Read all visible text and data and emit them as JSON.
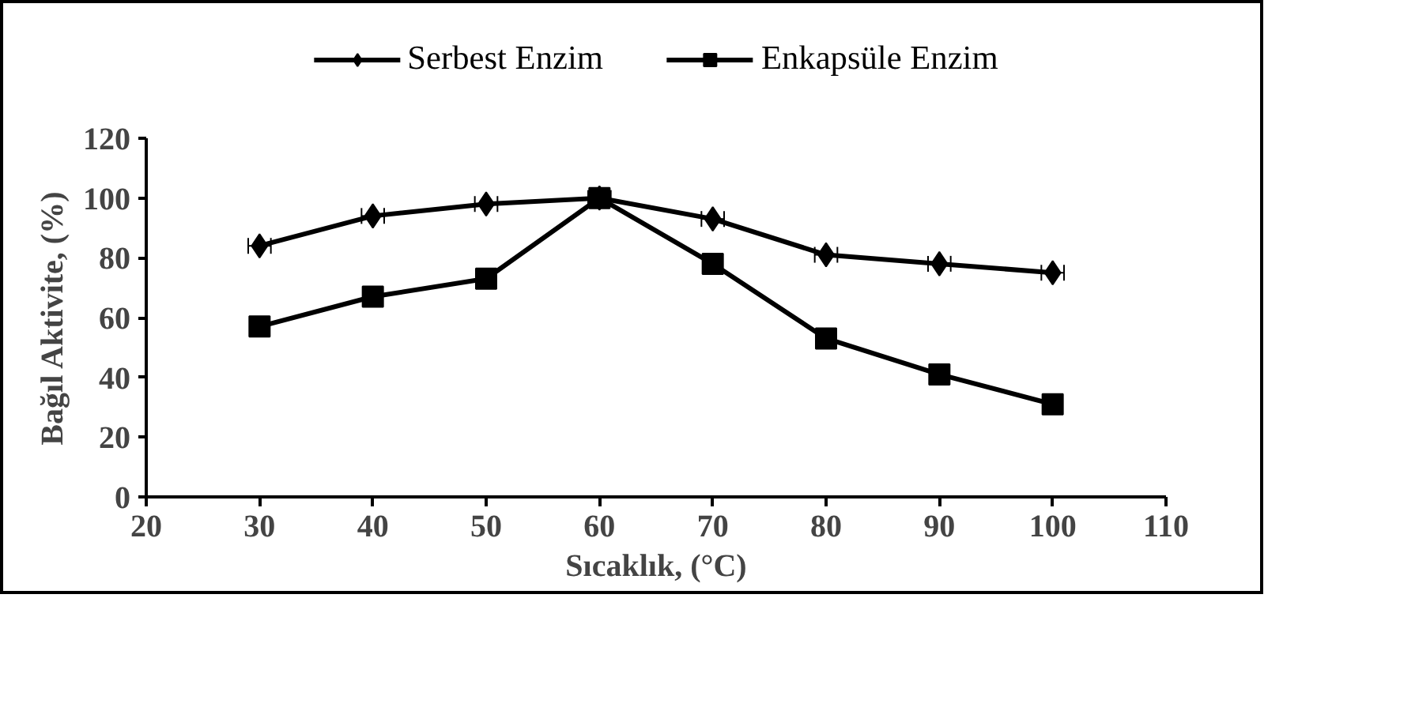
{
  "chart_data": {
    "type": "line",
    "xlabel": "Sıcaklık, (°C)",
    "ylabel": "Bağıl Aktivite, (%)",
    "x": [
      30,
      40,
      50,
      60,
      70,
      80,
      90,
      100
    ],
    "series": [
      {
        "name": "Serbest Enzim",
        "color": "#000000",
        "marker": "diamond",
        "values": [
          84,
          94,
          98,
          100,
          93,
          81,
          78,
          75
        ],
        "xerrors": [
          1,
          1,
          1,
          1,
          1,
          1,
          1,
          1
        ]
      },
      {
        "name": "Enkapsüle Enzim",
        "color": "#000000",
        "marker": "square",
        "values": [
          57,
          67,
          73,
          100,
          78,
          53,
          41,
          31
        ]
      }
    ],
    "xlim": [
      20,
      110
    ],
    "xticks": [
      20,
      30,
      40,
      50,
      60,
      70,
      80,
      90,
      100,
      110
    ],
    "ylim": [
      0,
      120
    ],
    "yticks": [
      0,
      20,
      40,
      60,
      80,
      100,
      120
    ],
    "grid": false,
    "legend": "top",
    "line_style": "solid"
  }
}
